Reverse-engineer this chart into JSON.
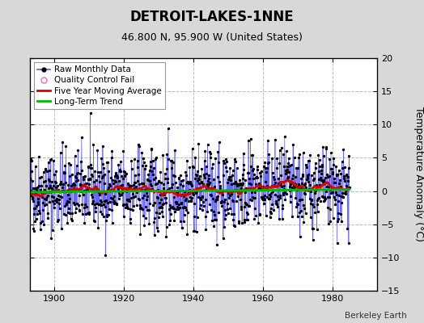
{
  "title": "DETROIT-LAKES-1NNE",
  "subtitle": "46.800 N, 95.900 W (United States)",
  "ylabel": "Temperature Anomaly (°C)",
  "credit": "Berkeley Earth",
  "xlim": [
    1893,
    1993
  ],
  "ylim": [
    -15,
    20
  ],
  "yticks": [
    -15,
    -10,
    -5,
    0,
    5,
    10,
    15,
    20
  ],
  "xticks": [
    1900,
    1920,
    1940,
    1960,
    1980
  ],
  "bg_color": "#d8d8d8",
  "plot_bg_color": "#ffffff",
  "grid_color": "#bbbbbb",
  "seed": 42,
  "n_months": 1104,
  "start_year": 1893.0,
  "raw_std": 3.5,
  "moving_avg_window": 60,
  "line_color": "#5555ff",
  "dot_color": "#000000",
  "ma_color": "#dd0000",
  "trend_color": "#00bb00",
  "qc_color": "#ff69b4",
  "title_fontsize": 12,
  "subtitle_fontsize": 9,
  "tick_labelsize": 8,
  "ylabel_fontsize": 9,
  "legend_fontsize": 7.5
}
